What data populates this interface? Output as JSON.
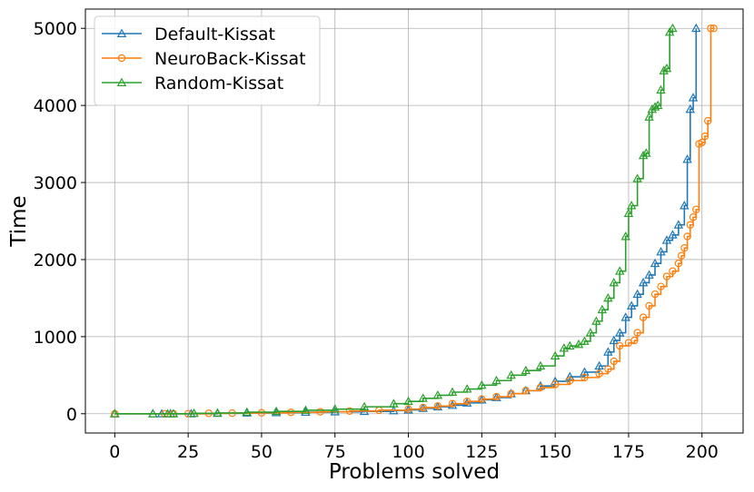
{
  "chart_data": {
    "type": "line",
    "xlabel": "Problems solved",
    "ylabel": "Time",
    "xlim": [
      -10,
      214
    ],
    "ylim": [
      -250,
      5250
    ],
    "xticks": [
      0,
      25,
      50,
      75,
      100,
      125,
      150,
      175,
      200
    ],
    "yticks": [
      0,
      1000,
      2000,
      3000,
      4000,
      5000
    ],
    "grid": true,
    "legend_position": "top-left",
    "series": [
      {
        "name": "Default-Kissat",
        "color": "#1f77b4",
        "marker": "triangle",
        "x": [
          0,
          13,
          16,
          19,
          26,
          35,
          45,
          55,
          65,
          75,
          85,
          95,
          100,
          105,
          110,
          115,
          120,
          125,
          130,
          135,
          140,
          145,
          150,
          155,
          160,
          165,
          168,
          170,
          172,
          174,
          176,
          178,
          180,
          182,
          184,
          186,
          188,
          190,
          192,
          194,
          195,
          196,
          197,
          198
        ],
        "y": [
          0,
          0,
          0,
          0,
          0,
          5,
          10,
          15,
          20,
          25,
          30,
          40,
          50,
          70,
          90,
          110,
          140,
          180,
          210,
          260,
          300,
          360,
          420,
          480,
          540,
          620,
          800,
          950,
          1050,
          1250,
          1400,
          1550,
          1700,
          1800,
          1950,
          2100,
          2250,
          2320,
          2450,
          2700,
          3300,
          3950,
          4100,
          5000
        ]
      },
      {
        "name": "NeuroBack-Kissat",
        "color": "#ff7f0e",
        "marker": "circle",
        "x": [
          0,
          17,
          20,
          25,
          32,
          40,
          50,
          60,
          70,
          80,
          90,
          100,
          105,
          110,
          115,
          120,
          125,
          130,
          135,
          140,
          145,
          150,
          155,
          160,
          165,
          168,
          170,
          172,
          175,
          177,
          178,
          180,
          182,
          184,
          186,
          188,
          190,
          192,
          193,
          194,
          195,
          196,
          197,
          198,
          199,
          200,
          201,
          202,
          203,
          204
        ],
        "y": [
          0,
          0,
          0,
          0,
          5,
          8,
          12,
          18,
          25,
          35,
          45,
          60,
          80,
          100,
          130,
          160,
          190,
          220,
          260,
          300,
          340,
          380,
          430,
          470,
          520,
          580,
          680,
          880,
          920,
          950,
          1050,
          1250,
          1400,
          1550,
          1650,
          1780,
          1850,
          1950,
          2050,
          2150,
          2300,
          2450,
          2550,
          2650,
          3500,
          3520,
          3600,
          3800,
          5000,
          5000
        ]
      },
      {
        "name": "Random-Kissat",
        "color": "#2ca02c",
        "marker": "triangle",
        "x": [
          0,
          13,
          18,
          20,
          27,
          35,
          45,
          55,
          65,
          75,
          85,
          95,
          100,
          105,
          110,
          115,
          120,
          125,
          130,
          135,
          140,
          145,
          150,
          153,
          155,
          158,
          160,
          162,
          164,
          166,
          168,
          170,
          172,
          174,
          175,
          176,
          178,
          180,
          181,
          182,
          183,
          184,
          185,
          186,
          187,
          188,
          189,
          190
        ],
        "y": [
          0,
          0,
          0,
          0,
          5,
          10,
          20,
          30,
          45,
          60,
          90,
          130,
          160,
          200,
          240,
          280,
          320,
          370,
          430,
          500,
          560,
          620,
          750,
          850,
          880,
          900,
          940,
          1050,
          1200,
          1350,
          1500,
          1700,
          1850,
          2300,
          2600,
          2700,
          3050,
          3350,
          3380,
          3850,
          3950,
          3980,
          4000,
          4200,
          4450,
          4480,
          4950,
          5000
        ]
      }
    ]
  }
}
